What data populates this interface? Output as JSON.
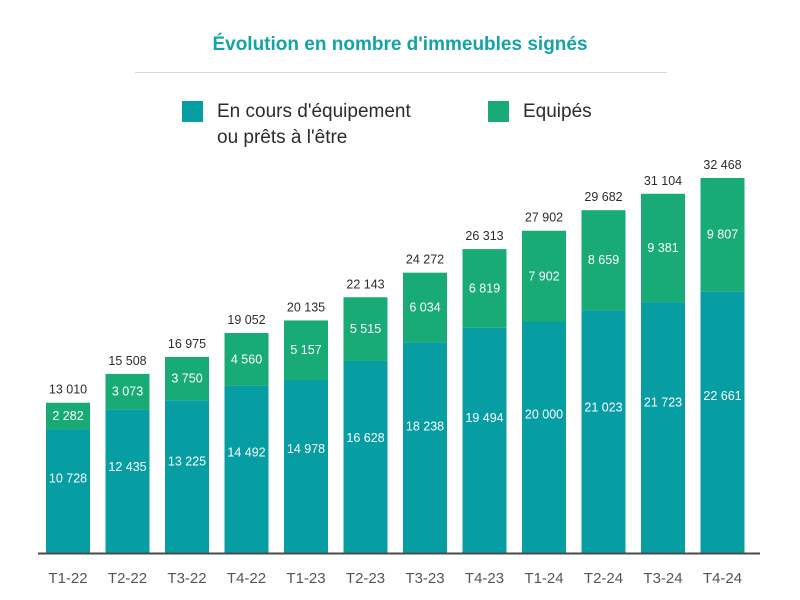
{
  "chart_data": {
    "type": "bar",
    "stacked": true,
    "title": "Évolution en nombre d'immeubles signés",
    "categories": [
      "T1-22",
      "T2-22",
      "T3-22",
      "T4-22",
      "T1-23",
      "T2-23",
      "T3-23",
      "T4-23",
      "T1-24",
      "T2-24",
      "T3-24",
      "T4-24"
    ],
    "series": [
      {
        "name": "En cours d'équipement ou prêts à l'être",
        "legend_lines": [
          "En cours d'équipement",
          "ou prêts à l'être"
        ],
        "color": "#069da3",
        "values": [
          10728,
          12435,
          13225,
          14492,
          14978,
          16628,
          18238,
          19494,
          20000,
          21023,
          21723,
          22661
        ],
        "labels": [
          "10 728",
          "12 435",
          "13 225",
          "14 492",
          "14 978",
          "16 628",
          "18 238",
          "19 494",
          "20 000",
          "21 023",
          "21 723",
          "22 661"
        ]
      },
      {
        "name": "Equipés",
        "color": "#19ab76",
        "values": [
          2282,
          3073,
          3750,
          4560,
          5157,
          5515,
          6034,
          6819,
          7902,
          8659,
          9381,
          9807
        ],
        "labels": [
          "2 282",
          "3 073",
          "3 750",
          "4 560",
          "5 157",
          "5 515",
          "6 034",
          "6 819",
          "7 902",
          "8 659",
          "9 381",
          "9 807"
        ]
      }
    ],
    "totals": [
      13010,
      15508,
      16975,
      19052,
      20135,
      22143,
      24272,
      26313,
      27902,
      29682,
      31104,
      32468
    ],
    "total_labels": [
      "13 010",
      "15 508",
      "16 975",
      "19 052",
      "20 135",
      "22 143",
      "24 272",
      "26 313",
      "27 902",
      "29 682",
      "31 104",
      "32 468"
    ],
    "ylim": [
      0,
      32468
    ],
    "grid": false,
    "legend": "top"
  }
}
